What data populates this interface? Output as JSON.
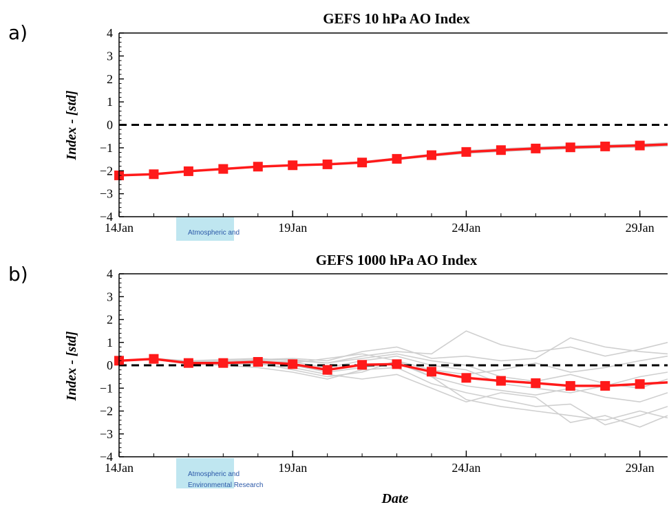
{
  "colors": {
    "main_series": "#ff1a1a",
    "ensemble": "#cfcfcf",
    "zero_line": "#000000",
    "watermark_bg": "#bfe6f0",
    "watermark_text": "#2b58a8"
  },
  "watermark": {
    "line1": "Atmospheric and",
    "line2": "Environmental Research"
  },
  "chart_data": [
    {
      "type": "line",
      "panel_label": "a)",
      "title": "GEFS 10 hPa AO Index",
      "xlabel": "",
      "ylabel": "Index - [std]",
      "ylim": [
        -4,
        4
      ],
      "yticks": [
        -4,
        -3,
        -2,
        -1,
        0,
        1,
        2,
        3,
        4
      ],
      "xlim": [
        "14Jan",
        "29.8Jan"
      ],
      "xticks": [
        "14Jan",
        "19Jan",
        "24Jan",
        "29Jan"
      ],
      "reference_line": 0,
      "x": [
        "14Jan",
        "15Jan",
        "16Jan",
        "17Jan",
        "18Jan",
        "19Jan",
        "20Jan",
        "21Jan",
        "22Jan",
        "23Jan",
        "24Jan",
        "25Jan",
        "26Jan",
        "27Jan",
        "28Jan",
        "29Jan",
        "29.8Jan"
      ],
      "series": [
        {
          "values": [
            -2.2,
            -2.15,
            -2.02,
            -1.92,
            -1.82,
            -1.76,
            -1.72,
            -1.64,
            -1.48,
            -1.32,
            -1.18,
            -1.1,
            -1.03,
            -0.98,
            -0.94,
            -0.9,
            -0.85
          ],
          "markers": [
            true,
            true,
            true,
            true,
            true,
            true,
            true,
            true,
            true,
            true,
            true,
            true,
            true,
            true,
            true,
            true,
            false
          ]
        }
      ],
      "ensemble": [
        [
          -2.2,
          -2.14,
          -2.0,
          -1.9,
          -1.8,
          -1.74,
          -1.7,
          -1.6,
          -1.45,
          -1.28,
          -1.12,
          -1.04,
          -0.97,
          -0.92,
          -0.88,
          -0.84,
          -0.78
        ],
        [
          -2.2,
          -2.16,
          -2.04,
          -1.94,
          -1.84,
          -1.78,
          -1.74,
          -1.67,
          -1.52,
          -1.36,
          -1.24,
          -1.16,
          -1.09,
          -1.04,
          -1.0,
          -0.97,
          -0.92
        ],
        [
          -2.2,
          -2.15,
          -2.01,
          -1.91,
          -1.81,
          -1.75,
          -1.71,
          -1.62,
          -1.46,
          -1.3,
          -1.15,
          -1.07,
          -1.0,
          -0.95,
          -0.9,
          -0.86,
          -0.8
        ],
        [
          -2.2,
          -2.15,
          -2.03,
          -1.93,
          -1.83,
          -1.77,
          -1.73,
          -1.66,
          -1.5,
          -1.34,
          -1.21,
          -1.13,
          -1.06,
          -1.01,
          -0.97,
          -0.94,
          -0.9
        ]
      ]
    },
    {
      "type": "line",
      "panel_label": "b)",
      "title": "GEFS 1000 hPa AO Index",
      "xlabel": "Date",
      "ylabel": "Index - [std]",
      "ylim": [
        -4,
        4
      ],
      "yticks": [
        -4,
        -3,
        -2,
        -1,
        0,
        1,
        2,
        3,
        4
      ],
      "xlim": [
        "14Jan",
        "29.8Jan"
      ],
      "xticks": [
        "14Jan",
        "19Jan",
        "24Jan",
        "29Jan"
      ],
      "reference_line": 0,
      "x": [
        "14Jan",
        "15Jan",
        "16Jan",
        "17Jan",
        "18Jan",
        "19Jan",
        "20Jan",
        "21Jan",
        "22Jan",
        "23Jan",
        "24Jan",
        "25Jan",
        "26Jan",
        "27Jan",
        "28Jan",
        "29Jan",
        "29.8Jan"
      ],
      "series": [
        {
          "values": [
            0.2,
            0.28,
            0.1,
            0.1,
            0.15,
            0.05,
            -0.2,
            0.02,
            0.05,
            -0.28,
            -0.55,
            -0.68,
            -0.78,
            -0.9,
            -0.9,
            -0.82,
            -0.75
          ],
          "markers": [
            true,
            true,
            true,
            true,
            true,
            true,
            true,
            true,
            true,
            true,
            true,
            true,
            true,
            true,
            true,
            true,
            false
          ]
        }
      ],
      "ensemble": [
        [
          0.2,
          0.3,
          0.2,
          0.25,
          0.3,
          0.2,
          0.1,
          0.4,
          0.6,
          0.5,
          1.5,
          0.9,
          0.6,
          0.8,
          0.4,
          0.7,
          1.0
        ],
        [
          0.2,
          0.25,
          0.1,
          0.05,
          0.1,
          -0.2,
          -0.5,
          -0.3,
          0.2,
          -0.5,
          -1.5,
          -1.8,
          -2.0,
          -2.2,
          -2.4,
          -2.0,
          -2.3
        ],
        [
          0.2,
          0.28,
          0.15,
          0.2,
          0.25,
          0.3,
          0.2,
          0.6,
          0.8,
          0.3,
          0.4,
          0.2,
          0.3,
          1.2,
          0.8,
          0.6,
          0.5
        ],
        [
          0.2,
          0.26,
          0.05,
          0.0,
          -0.1,
          -0.3,
          -0.6,
          -0.2,
          -0.1,
          -0.8,
          -1.2,
          -1.5,
          -1.8,
          -1.7,
          -2.6,
          -2.2,
          -1.8
        ],
        [
          0.2,
          0.3,
          0.12,
          0.15,
          0.2,
          0.1,
          0.3,
          0.5,
          0.2,
          -0.2,
          -0.4,
          -0.2,
          0.1,
          -0.3,
          -0.1,
          0.2,
          0.4
        ],
        [
          0.2,
          0.27,
          0.08,
          0.05,
          0.05,
          -0.1,
          -0.4,
          -0.6,
          -0.4,
          -1.0,
          -1.6,
          -1.2,
          -1.4,
          -2.5,
          -2.2,
          -2.7,
          -2.2
        ],
        [
          0.2,
          0.29,
          0.12,
          0.14,
          0.22,
          0.25,
          0.1,
          0.3,
          0.5,
          0.2,
          0.0,
          -0.5,
          -0.7,
          -0.4,
          -0.8,
          -1.0,
          -0.6
        ],
        [
          0.2,
          0.28,
          0.09,
          0.08,
          0.12,
          0.0,
          -0.3,
          -0.1,
          0.1,
          -0.5,
          -0.9,
          -1.1,
          -1.3,
          -1.0,
          -1.4,
          -1.6,
          -1.2
        ],
        [
          0.2,
          0.26,
          0.1,
          0.12,
          0.18,
          0.15,
          -0.1,
          0.2,
          0.4,
          0.0,
          -0.2,
          -0.8,
          -1.0,
          -1.2,
          -0.9,
          -0.5,
          -0.3
        ]
      ]
    }
  ]
}
